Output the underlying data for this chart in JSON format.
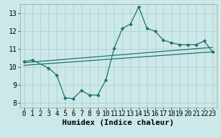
{
  "xlabel": "Humidex (Indice chaleur)",
  "background_color": "#cce8e8",
  "line_color": "#1a7070",
  "grid_color": "#aacccc",
  "xlim": [
    -0.5,
    23.5
  ],
  "ylim": [
    7.75,
    13.5
  ],
  "xticks": [
    0,
    1,
    2,
    3,
    4,
    5,
    6,
    7,
    8,
    9,
    10,
    11,
    12,
    13,
    14,
    15,
    16,
    17,
    18,
    19,
    20,
    21,
    22,
    23
  ],
  "yticks": [
    8,
    9,
    10,
    11,
    12,
    13
  ],
  "series1_x": [
    0,
    1,
    3,
    4,
    5,
    6,
    7,
    8,
    9,
    10,
    11,
    12,
    13,
    14,
    15,
    16,
    17,
    18,
    19,
    20,
    21,
    22,
    23
  ],
  "series1_y": [
    10.3,
    10.4,
    9.95,
    9.55,
    8.3,
    8.25,
    8.7,
    8.45,
    8.45,
    9.3,
    11.05,
    12.15,
    12.4,
    13.35,
    12.15,
    12.0,
    11.5,
    11.35,
    11.25,
    11.25,
    11.25,
    11.45,
    10.85
  ],
  "series2_x": [
    0,
    23
  ],
  "series2_y": [
    10.25,
    11.1
  ],
  "series3_x": [
    0,
    23
  ],
  "series3_y": [
    10.1,
    10.85
  ],
  "marker_size": 2.5,
  "font_size": 7,
  "linewidth": 0.9
}
